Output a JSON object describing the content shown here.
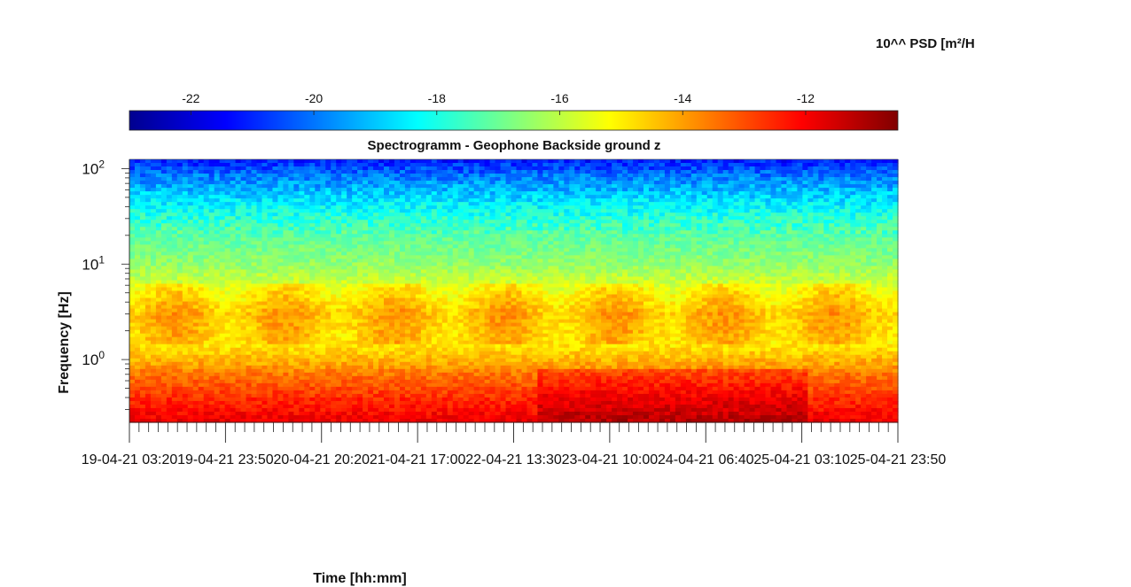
{
  "colorbar": {
    "title": "10^^ PSD [m²/H",
    "ticks": [
      -22,
      -20,
      -18,
      -16,
      -14,
      -12
    ],
    "range": [
      -23.0,
      -10.5
    ],
    "colormap": "jet"
  },
  "chart_data": {
    "type": "heatmap",
    "title": "Spectrogramm - Geophone Backside ground z",
    "xlabel": "Time [hh:mm]",
    "ylabel": "Frequency [Hz]",
    "x_tick_labels": [
      "19-04-21 03:20",
      "19-04-21 23:50",
      "20-04-21 20:20",
      "21-04-21 17:00",
      "22-04-21 13:30",
      "23-04-21 10:00",
      "24-04-21 06:40",
      "25-04-21 03:10",
      "25-04-21 23:50"
    ],
    "y_tick_labels": [
      {
        "base": "10",
        "exp": "0"
      },
      {
        "base": "10",
        "exp": "1"
      },
      {
        "base": "10",
        "exp": "2"
      }
    ],
    "y_scale": "log",
    "ylim_hz": [
      0.22,
      125
    ],
    "color_value_range": [
      -23.0,
      -10.5
    ],
    "value_profile": {
      "description_rows": "PSD (log10) by frequency band",
      "bands_hz": [
        0.22,
        0.4,
        0.7,
        1.0,
        1.5,
        3.0,
        5.0,
        10,
        20,
        40,
        80,
        125
      ],
      "base_log_psd": [
        -11.8,
        -12.6,
        -13.5,
        -14.3,
        -15.0,
        -14.7,
        -15.4,
        -16.5,
        -17.2,
        -18.3,
        -19.8,
        -21.2
      ]
    }
  }
}
